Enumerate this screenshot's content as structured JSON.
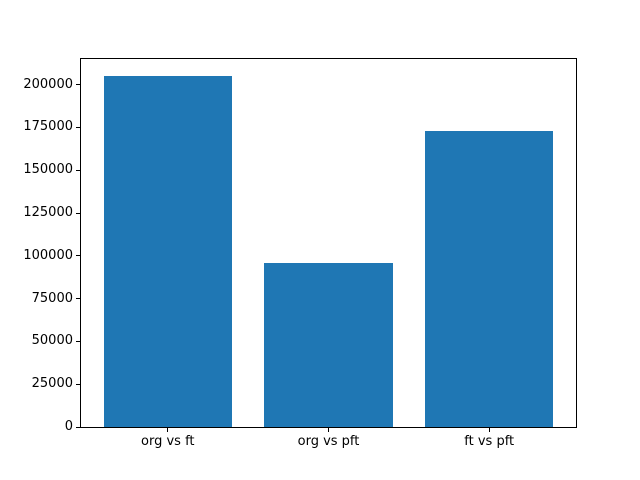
{
  "figure": {
    "background": "#ffffff"
  },
  "chart_data": {
    "type": "bar",
    "title": "",
    "xlabel": "",
    "ylabel": "",
    "categories": [
      "org vs ft",
      "org vs pft",
      "ft vs pft"
    ],
    "values": [
      205000,
      95900,
      173200
    ],
    "ylim": [
      0,
      215000
    ],
    "yticks": [
      0,
      25000,
      50000,
      75000,
      100000,
      125000,
      150000,
      175000,
      200000
    ],
    "bar_color": "#1f77b4",
    "axis_color": "#000000",
    "text_color": "#000000",
    "grid": false,
    "legend": false,
    "bar_width_fraction": 0.8
  }
}
